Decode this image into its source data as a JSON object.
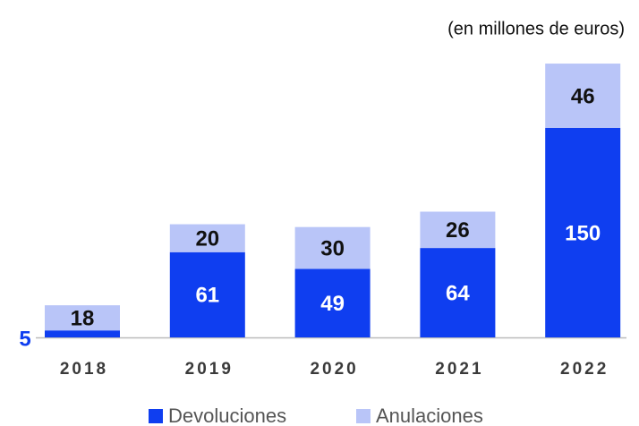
{
  "chart_data": {
    "type": "stacked_bar",
    "subtitle": "(en millones de euros)",
    "categories": [
      "2018",
      "2019",
      "2020",
      "2021",
      "2022"
    ],
    "series": [
      {
        "name": "Devoluciones",
        "color": "#0f3ef0",
        "values": [
          5,
          61,
          49,
          64,
          150
        ]
      },
      {
        "name": "Anulaciones",
        "color": "#b9c5f8",
        "values": [
          18,
          20,
          30,
          26,
          46
        ]
      }
    ]
  }
}
